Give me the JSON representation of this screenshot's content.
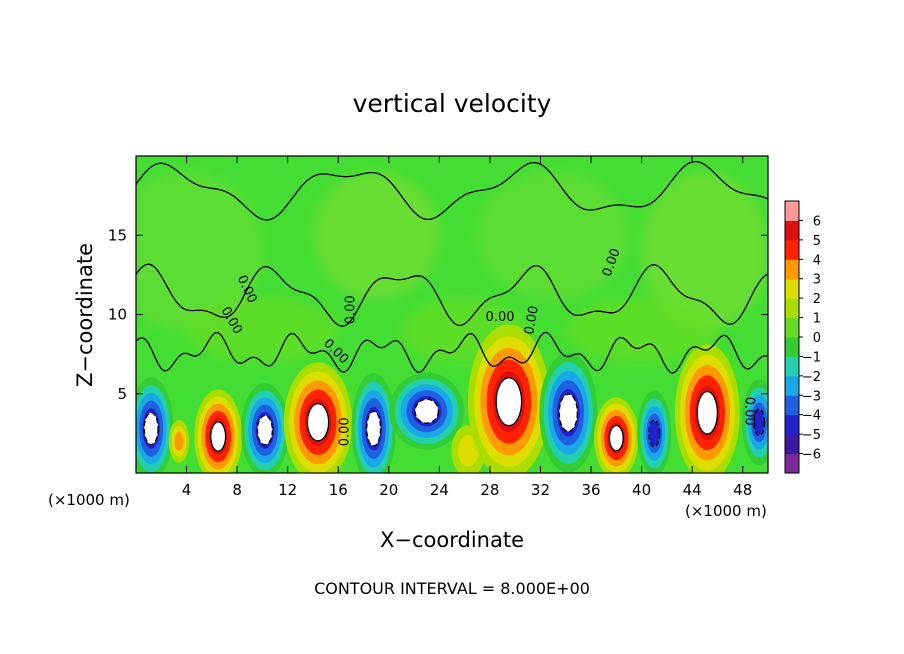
{
  "chart_data": {
    "type": "heatmap",
    "title": "vertical velocity",
    "xlabel": "X−coordinate",
    "ylabel": "Z−coordinate",
    "x_unit_label": "(×1000 m)",
    "x_unit_label_right": "(×1000 m)",
    "footer": "CONTOUR INTERVAL = 8.000E+00",
    "xlim": [
      0,
      50
    ],
    "ylim": [
      0,
      20
    ],
    "xticks": [
      4,
      8,
      12,
      16,
      20,
      24,
      28,
      32,
      36,
      40,
      44,
      48
    ],
    "xtick_labels": [
      "4",
      "8",
      "12",
      "16",
      "20",
      "24",
      "28",
      "32",
      "36",
      "40",
      "44",
      "48"
    ],
    "yticks": [
      5,
      10,
      15
    ],
    "ytick_labels": [
      "5",
      "10",
      "15"
    ],
    "colorbar": {
      "levels": [
        -6,
        -5,
        -4,
        -3,
        -2,
        -1,
        0,
        1,
        2,
        3,
        4,
        5,
        6
      ],
      "labels": [
        "−6",
        "−5",
        "−4",
        "−3",
        "−2",
        "−1",
        "0",
        "1",
        "2",
        "3",
        "4",
        "5",
        "6"
      ],
      "colors": [
        "#7a2a9a",
        "#3a1aa0",
        "#2222cc",
        "#1e60e0",
        "#1aa8e8",
        "#22d0b0",
        "#33cc33",
        "#66dd22",
        "#aadd00",
        "#dddd00",
        "#ff9900",
        "#ff2200",
        "#dd1111",
        "#ff9999"
      ]
    },
    "contour_labels": [
      "0.00",
      "0.00",
      "0.00",
      "0.00",
      "0.00",
      "0.00",
      "0.00",
      "0.00",
      "0.00"
    ],
    "cells": [
      {
        "x": 1.2,
        "z": 2.8,
        "w": -6,
        "sx": 1.3,
        "sz": 2.4
      },
      {
        "x": 3.4,
        "z": 2.0,
        "w": 3,
        "sx": 0.6,
        "sz": 1.0
      },
      {
        "x": 6.5,
        "z": 2.3,
        "w": 6,
        "sx": 1.4,
        "sz": 2.2
      },
      {
        "x": 10.2,
        "z": 2.7,
        "w": -6,
        "sx": 1.4,
        "sz": 2.2
      },
      {
        "x": 14.4,
        "z": 3.2,
        "w": 6,
        "sx": 2.0,
        "sz": 2.8
      },
      {
        "x": 18.8,
        "z": 2.8,
        "w": -6,
        "sx": 1.3,
        "sz": 2.6
      },
      {
        "x": 23.0,
        "z": 3.9,
        "w": -6,
        "sx": 2.2,
        "sz": 1.8
      },
      {
        "x": 26.3,
        "z": 1.4,
        "w": 2,
        "sx": 1.0,
        "sz": 1.2
      },
      {
        "x": 29.5,
        "z": 4.5,
        "w": 6,
        "sx": 2.4,
        "sz": 3.6
      },
      {
        "x": 34.2,
        "z": 3.8,
        "w": -6,
        "sx": 1.7,
        "sz": 2.8
      },
      {
        "x": 38.0,
        "z": 2.2,
        "w": 6,
        "sx": 1.3,
        "sz": 1.9
      },
      {
        "x": 41.0,
        "z": 2.5,
        "w": -5,
        "sx": 1.0,
        "sz": 2.0
      },
      {
        "x": 45.2,
        "z": 3.8,
        "w": 6,
        "sx": 1.9,
        "sz": 3.2
      },
      {
        "x": 49.3,
        "z": 3.2,
        "w": -5,
        "sx": 1.0,
        "sz": 2.0
      }
    ]
  }
}
